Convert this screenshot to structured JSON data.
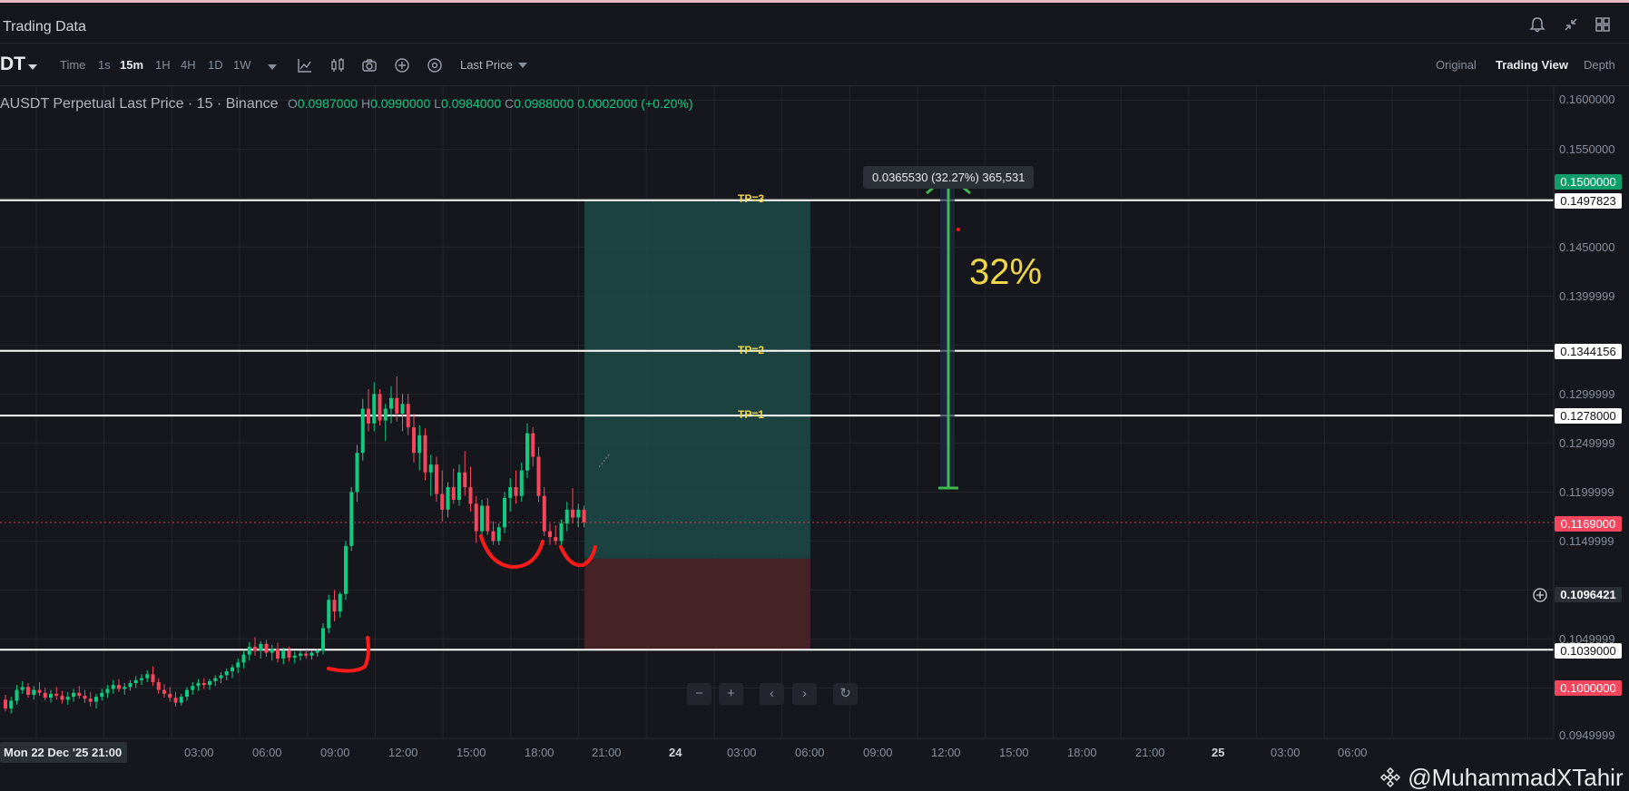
{
  "app": {
    "title": "Trading Data"
  },
  "toolbar": {
    "symbol": "DT",
    "timeframes": [
      "Time",
      "1s",
      "15m",
      "1H",
      "4H",
      "1D",
      "1W"
    ],
    "active_timeframe": "15m",
    "price_type": "Last Price",
    "views": [
      "Original",
      "Trading View",
      "Depth"
    ],
    "active_view": "Trading View",
    "icons": [
      "indicator-icon",
      "chart-type-icon",
      "camera-icon",
      "add-icon",
      "settings-icon"
    ]
  },
  "legend": {
    "title": "AUSDT Perpetual Last Price · 15 · Binance",
    "o_key": "O",
    "o": "0.0987000",
    "h_key": "H",
    "h": "0.0990000",
    "l_key": "L",
    "l": "0.0984000",
    "c_key": "C",
    "c": "0.0988000",
    "change": "0.0002000 (+0.20%)"
  },
  "price_axis": {
    "labels": [
      "0.1600000",
      "0.1550000",
      "0.1450000",
      "0.1399999",
      "0.1299999",
      "0.1249999",
      "0.1199999",
      "0.1149999",
      "0.1049999",
      "0.0949999"
    ],
    "tags": {
      "tp_level": "0.1500000",
      "tp3": "0.1497823",
      "tp2": "0.1344156",
      "tp1": "0.1278000",
      "last_price": "0.1169000",
      "crosshair": "0.1096421",
      "stop": "0.1039000",
      "low": "0.1000000"
    }
  },
  "time_axis": {
    "labels": [
      "03:00",
      "06:00",
      "09:00",
      "12:00",
      "15:00",
      "18:00",
      "21:00",
      "24",
      "03:00",
      "06:00",
      "09:00",
      "12:00",
      "15:00",
      "18:00",
      "21:00",
      "25",
      "03:00",
      "06:00"
    ],
    "chip": "Mon 22 Dec '25   21:00"
  },
  "annotations": {
    "tp3": "TP=3",
    "tp2": "TP=2",
    "tp1": "TP=1",
    "measure": "0.0365530 (32.27%) 365,531",
    "percent": "32%"
  },
  "watermark": "@MuhammadXTahir",
  "colors": {
    "background": "#16171c",
    "up": "#0ecb81",
    "down": "#f6465d",
    "tp_zone": "#1d4a45",
    "sl_zone": "#4a2328",
    "annotation_red": "#ff1a1a",
    "arrow_green": "#3fb950",
    "tp_text": "#f0d74a"
  },
  "chart_data": {
    "type": "candlestick",
    "symbol_pair": "AUSDT Perpetual",
    "interval": "15",
    "ylim": [
      0.095,
      0.16
    ],
    "candles": [
      [
        0.0988,
        0.0993,
        0.0976,
        0.0979
      ],
      [
        0.0979,
        0.0991,
        0.0974,
        0.0987
      ],
      [
        0.0987,
        0.1003,
        0.0983,
        0.0998
      ],
      [
        0.0998,
        0.1007,
        0.0994,
        0.1001
      ],
      [
        0.1001,
        0.1005,
        0.099,
        0.0993
      ],
      [
        0.0993,
        0.1002,
        0.0988,
        0.0998
      ],
      [
        0.0998,
        0.1006,
        0.0992,
        0.0995
      ],
      [
        0.0995,
        0.1,
        0.0987,
        0.099
      ],
      [
        0.099,
        0.0998,
        0.0985,
        0.0994
      ],
      [
        0.0994,
        0.1001,
        0.0988,
        0.0992
      ],
      [
        0.0992,
        0.0997,
        0.0984,
        0.0988
      ],
      [
        0.0988,
        0.0996,
        0.0983,
        0.0991
      ],
      [
        0.0991,
        0.0999,
        0.0986,
        0.0995
      ],
      [
        0.0995,
        0.1002,
        0.0989,
        0.0992
      ],
      [
        0.0992,
        0.0998,
        0.0985,
        0.0989
      ],
      [
        0.0989,
        0.0996,
        0.0981,
        0.0986
      ],
      [
        0.0986,
        0.0994,
        0.0979,
        0.0991
      ],
      [
        0.0991,
        0.0999,
        0.0987,
        0.0995
      ],
      [
        0.0995,
        0.1003,
        0.099,
        0.0999
      ],
      [
        0.0999,
        0.1008,
        0.0994,
        0.1003
      ],
      [
        0.1003,
        0.1009,
        0.0996,
        0.0999
      ],
      [
        0.0999,
        0.1005,
        0.0993,
        0.1001
      ],
      [
        0.1001,
        0.1008,
        0.0997,
        0.1005
      ],
      [
        0.1005,
        0.1012,
        0.1,
        0.1008
      ],
      [
        0.1008,
        0.1014,
        0.1003,
        0.101
      ],
      [
        0.101,
        0.1018,
        0.1006,
        0.1014
      ],
      [
        0.1014,
        0.1022,
        0.1002,
        0.1006
      ],
      [
        0.1006,
        0.101,
        0.0994,
        0.0998
      ],
      [
        0.0998,
        0.1004,
        0.099,
        0.0994
      ],
      [
        0.0994,
        0.1001,
        0.0986,
        0.099
      ],
      [
        0.099,
        0.0996,
        0.0981,
        0.0985
      ],
      [
        0.0985,
        0.0994,
        0.0982,
        0.0991
      ],
      [
        0.0991,
        0.1001,
        0.0987,
        0.0998
      ],
      [
        0.0998,
        0.1006,
        0.0993,
        0.1002
      ],
      [
        0.1002,
        0.1009,
        0.0997,
        0.1005
      ],
      [
        0.1005,
        0.101,
        0.0999,
        0.1003
      ],
      [
        0.1003,
        0.1009,
        0.0998,
        0.1007
      ],
      [
        0.1007,
        0.1013,
        0.1002,
        0.101
      ],
      [
        0.101,
        0.1016,
        0.1005,
        0.1013
      ],
      [
        0.1013,
        0.102,
        0.1008,
        0.1017
      ],
      [
        0.1017,
        0.1024,
        0.101,
        0.1021
      ],
      [
        0.1021,
        0.103,
        0.1015,
        0.1026
      ],
      [
        0.1026,
        0.1038,
        0.102,
        0.1034
      ],
      [
        0.1034,
        0.1047,
        0.1028,
        0.1042
      ],
      [
        0.1042,
        0.1052,
        0.1033,
        0.1038
      ],
      [
        0.1038,
        0.1048,
        0.103,
        0.1045
      ],
      [
        0.1045,
        0.1049,
        0.1032,
        0.1036
      ],
      [
        0.1036,
        0.1044,
        0.1028,
        0.104
      ],
      [
        0.104,
        0.1046,
        0.1026,
        0.103
      ],
      [
        0.103,
        0.1041,
        0.1024,
        0.1038
      ],
      [
        0.1038,
        0.1042,
        0.1027,
        0.1031
      ],
      [
        0.1031,
        0.1037,
        0.1025,
        0.1033
      ],
      [
        0.1033,
        0.1038,
        0.1028,
        0.1035
      ],
      [
        0.1035,
        0.1039,
        0.103,
        0.1033
      ],
      [
        0.1033,
        0.1038,
        0.1029,
        0.1036
      ],
      [
        0.1036,
        0.104,
        0.1032,
        0.1038
      ],
      [
        0.1038,
        0.1066,
        0.1034,
        0.1061
      ],
      [
        0.1061,
        0.1095,
        0.1056,
        0.109
      ],
      [
        0.109,
        0.11,
        0.1068,
        0.1078
      ],
      [
        0.1078,
        0.1098,
        0.1072,
        0.1096
      ],
      [
        0.1096,
        0.115,
        0.109,
        0.1145
      ],
      [
        0.1145,
        0.1205,
        0.114,
        0.12
      ],
      [
        0.12,
        0.1248,
        0.119,
        0.124
      ],
      [
        0.124,
        0.1295,
        0.1232,
        0.1285
      ],
      [
        0.1285,
        0.1305,
        0.1262,
        0.127
      ],
      [
        0.127,
        0.1312,
        0.1262,
        0.13
      ],
      [
        0.13,
        0.1305,
        0.1268,
        0.1273
      ],
      [
        0.1273,
        0.129,
        0.1252,
        0.1285
      ],
      [
        0.1285,
        0.1308,
        0.127,
        0.1296
      ],
      [
        0.1296,
        0.1318,
        0.1272,
        0.128
      ],
      [
        0.128,
        0.13,
        0.1262,
        0.129
      ],
      [
        0.129,
        0.13,
        0.1258,
        0.1266
      ],
      [
        0.1266,
        0.128,
        0.123,
        0.124
      ],
      [
        0.124,
        0.1268,
        0.1222,
        0.1258
      ],
      [
        0.1258,
        0.1265,
        0.1212,
        0.122
      ],
      [
        0.122,
        0.1238,
        0.1196,
        0.1228
      ],
      [
        0.1228,
        0.1236,
        0.119,
        0.1198
      ],
      [
        0.1198,
        0.1222,
        0.117,
        0.1182
      ],
      [
        0.1182,
        0.121,
        0.1174,
        0.1205
      ],
      [
        0.1205,
        0.1224,
        0.1188,
        0.1192
      ],
      [
        0.1192,
        0.1228,
        0.1186,
        0.122
      ],
      [
        0.122,
        0.1242,
        0.1196,
        0.1205
      ],
      [
        0.1205,
        0.1226,
        0.118,
        0.1188
      ],
      [
        0.1188,
        0.1196,
        0.1148,
        0.116
      ],
      [
        0.116,
        0.1192,
        0.1152,
        0.1186
      ],
      [
        0.1186,
        0.1194,
        0.1156,
        0.116
      ],
      [
        0.116,
        0.117,
        0.1146,
        0.115
      ],
      [
        0.115,
        0.1168,
        0.1146,
        0.1164
      ],
      [
        0.1164,
        0.12,
        0.1158,
        0.1194
      ],
      [
        0.1194,
        0.1214,
        0.118,
        0.1205
      ],
      [
        0.1205,
        0.1222,
        0.1188,
        0.1196
      ],
      [
        0.1196,
        0.123,
        0.119,
        0.1222
      ],
      [
        0.1222,
        0.127,
        0.1214,
        0.126
      ],
      [
        0.126,
        0.1266,
        0.1226,
        0.1236
      ],
      [
        0.1236,
        0.1246,
        0.119,
        0.1196
      ],
      [
        0.1196,
        0.1205,
        0.1155,
        0.116
      ],
      [
        0.116,
        0.1168,
        0.1146,
        0.1154
      ],
      [
        0.1154,
        0.1166,
        0.1146,
        0.115
      ],
      [
        0.115,
        0.1172,
        0.1146,
        0.1168
      ],
      [
        0.1168,
        0.119,
        0.116,
        0.1182
      ],
      [
        0.1182,
        0.1204,
        0.1168,
        0.1174
      ],
      [
        0.1174,
        0.1188,
        0.1164,
        0.1182
      ],
      [
        0.1182,
        0.1186,
        0.1164,
        0.1169
      ]
    ],
    "levels": {
      "tp3": 0.1497823,
      "tp2": 0.1344156,
      "tp1": 0.1278,
      "stop": 0.1039,
      "entry": 0.1132,
      "last": 0.1169
    }
  }
}
